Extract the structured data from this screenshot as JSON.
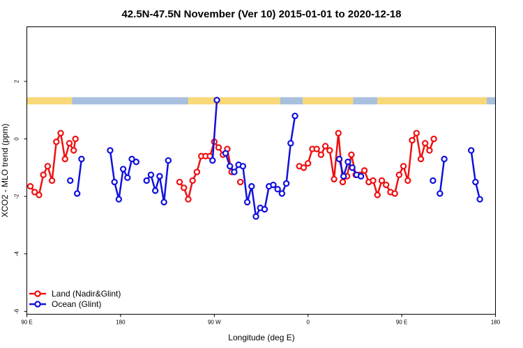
{
  "chart_data": {
    "type": "line",
    "title": "42.5N-47.5N November (Ver 10)   2015-01-01 to 2020-12-18",
    "xlabel": "Longitude (deg E)",
    "ylabel": "XCO2 - MLO trend (ppm)",
    "xlim": [
      -90,
      180
    ],
    "ylim": [
      -6.1,
      3.9
    ],
    "x_ticks": [
      {
        "value": -90,
        "label": "90 E"
      },
      {
        "value": -36,
        "label": "180"
      },
      {
        "value": 18,
        "label": "90 W"
      },
      {
        "value": 72,
        "label": "0"
      },
      {
        "value": 126,
        "label": "90 E"
      },
      {
        "value": 180,
        "label": "180"
      }
    ],
    "y_ticks": [
      {
        "value": -6,
        "label": "-6"
      },
      {
        "value": -4,
        "label": "-4"
      },
      {
        "value": -2,
        "label": "-2"
      },
      {
        "value": 0,
        "label": "0"
      },
      {
        "value": 2,
        "label": "2"
      }
    ],
    "grid": false,
    "legend_position": "bottom-left",
    "colors": {
      "land": "#ee1111",
      "ocean": "#1111dd",
      "mask_land": "#f8d878",
      "mask_ocean": "#a9bfde"
    },
    "mask_band": {
      "y_range": [
        1.2,
        1.45
      ],
      "segments": [
        {
          "type": "land",
          "x0": -90,
          "x1": -64
        },
        {
          "type": "ocean",
          "x0": -64,
          "x1": 3
        },
        {
          "type": "land",
          "x0": 3,
          "x1": 56
        },
        {
          "type": "ocean",
          "x0": 56,
          "x1": 69
        },
        {
          "type": "land",
          "x0": 69,
          "x1": 98
        },
        {
          "type": "ocean",
          "x0": 98,
          "x1": 112
        },
        {
          "type": "land",
          "x0": 112,
          "x1": 175
        },
        {
          "type": "ocean",
          "x0": 175,
          "x1": 180
        }
      ]
    },
    "series": [
      {
        "name": "Land (Nadir&Glint)",
        "key": "land",
        "points": [
          [
            -88,
            -1.65
          ],
          [
            -85.5,
            -1.85
          ],
          [
            -83,
            -1.95
          ],
          [
            -80.5,
            -1.25
          ],
          [
            -78,
            -0.95
          ],
          [
            -75.5,
            -1.45
          ],
          [
            -73,
            -0.1
          ],
          [
            -70.5,
            0.2
          ],
          [
            -68,
            -0.7
          ],
          [
            -65.5,
            -0.15
          ],
          [
            -63,
            -0.4
          ],
          [
            -62,
            -0.0
          ],
          null,
          [
            -2,
            -1.5
          ],
          [
            0.5,
            -1.7
          ],
          [
            3,
            -2.1
          ],
          [
            5.5,
            -1.45
          ],
          [
            8,
            -1.15
          ],
          [
            10.5,
            -0.6
          ],
          [
            13,
            -0.6
          ],
          [
            15.5,
            -0.6
          ],
          [
            18,
            -0.1
          ],
          [
            20.5,
            -0.3
          ],
          [
            23,
            -0.55
          ],
          [
            25.5,
            -0.35
          ],
          [
            28,
            -1.15
          ],
          null,
          [
            33,
            -1.5
          ],
          null,
          [
            67,
            -0.95
          ],
          [
            69.5,
            -1.0
          ],
          [
            72,
            -0.85
          ],
          [
            74.5,
            -0.35
          ],
          [
            77,
            -0.35
          ],
          [
            79.5,
            -0.55
          ],
          [
            82,
            -0.25
          ],
          [
            84.5,
            -0.4
          ],
          [
            87,
            -1.4
          ],
          [
            89.5,
            0.2
          ],
          [
            92,
            -1.5
          ],
          [
            94.5,
            -1.3
          ],
          [
            97,
            -0.55
          ],
          [
            99.5,
            -1.25
          ],
          [
            102,
            -1.25
          ],
          [
            104.5,
            -1.1
          ],
          [
            107,
            -1.5
          ],
          [
            109.5,
            -1.45
          ],
          [
            112,
            -1.95
          ],
          [
            114.5,
            -1.45
          ],
          [
            117,
            -1.6
          ],
          [
            119.5,
            -1.85
          ],
          [
            122,
            -1.9
          ],
          [
            124.5,
            -1.25
          ],
          [
            127,
            -0.95
          ],
          [
            129.5,
            -1.45
          ],
          [
            132,
            -0.05
          ],
          [
            134.5,
            0.2
          ],
          [
            137,
            -0.7
          ],
          [
            139.5,
            -0.15
          ],
          [
            142,
            -0.4
          ],
          [
            144.5,
            0.0
          ]
        ]
      },
      {
        "name": "Ocean (Glint)",
        "key": "ocean",
        "points": [
          [
            -65,
            -1.45
          ],
          null,
          [
            -61,
            -1.9
          ],
          [
            -58.5,
            -0.7
          ],
          null,
          [
            -42,
            -0.4
          ],
          [
            -39.5,
            -1.5
          ],
          [
            -37,
            -2.1
          ],
          [
            -34.5,
            -1.05
          ],
          [
            -32,
            -1.35
          ],
          [
            -29.5,
            -0.7
          ],
          [
            -27,
            -0.8
          ],
          null,
          [
            -21,
            -1.45
          ],
          [
            -18.5,
            -1.25
          ],
          [
            -16,
            -1.8
          ],
          [
            -13.5,
            -1.3
          ],
          [
            -11,
            -2.2
          ],
          [
            -8.5,
            -0.75
          ],
          null,
          [
            17,
            -0.75
          ],
          [
            19.5,
            1.35
          ],
          null,
          [
            24.5,
            -0.5
          ],
          [
            27,
            -0.95
          ],
          [
            29.5,
            -1.15
          ],
          [
            32,
            -0.9
          ],
          [
            34.5,
            -0.95
          ],
          [
            37,
            -2.2
          ],
          [
            39.5,
            -1.65
          ],
          [
            42,
            -2.7
          ],
          [
            44.5,
            -2.4
          ],
          [
            47,
            -2.45
          ],
          [
            49.5,
            -1.65
          ],
          [
            52,
            -1.6
          ],
          [
            54.5,
            -1.75
          ],
          [
            57,
            -1.9
          ],
          [
            59.5,
            -1.55
          ],
          [
            62,
            -0.15
          ],
          [
            64.5,
            0.8
          ],
          null,
          [
            90,
            -0.7
          ],
          [
            92.5,
            -1.3
          ],
          [
            95,
            -0.8
          ],
          [
            97.5,
            -1.0
          ],
          [
            100,
            -1.25
          ],
          [
            102.5,
            -1.3
          ],
          null,
          [
            144,
            -1.45
          ],
          null,
          [
            148,
            -1.9
          ],
          [
            150.5,
            -0.7
          ],
          null,
          [
            166,
            -0.4
          ],
          [
            168.5,
            -1.5
          ],
          [
            171,
            -2.1
          ]
        ]
      }
    ]
  },
  "legend": {
    "land_label": "Land (Nadir&Glint)",
    "ocean_label": "Ocean (Glint)"
  }
}
